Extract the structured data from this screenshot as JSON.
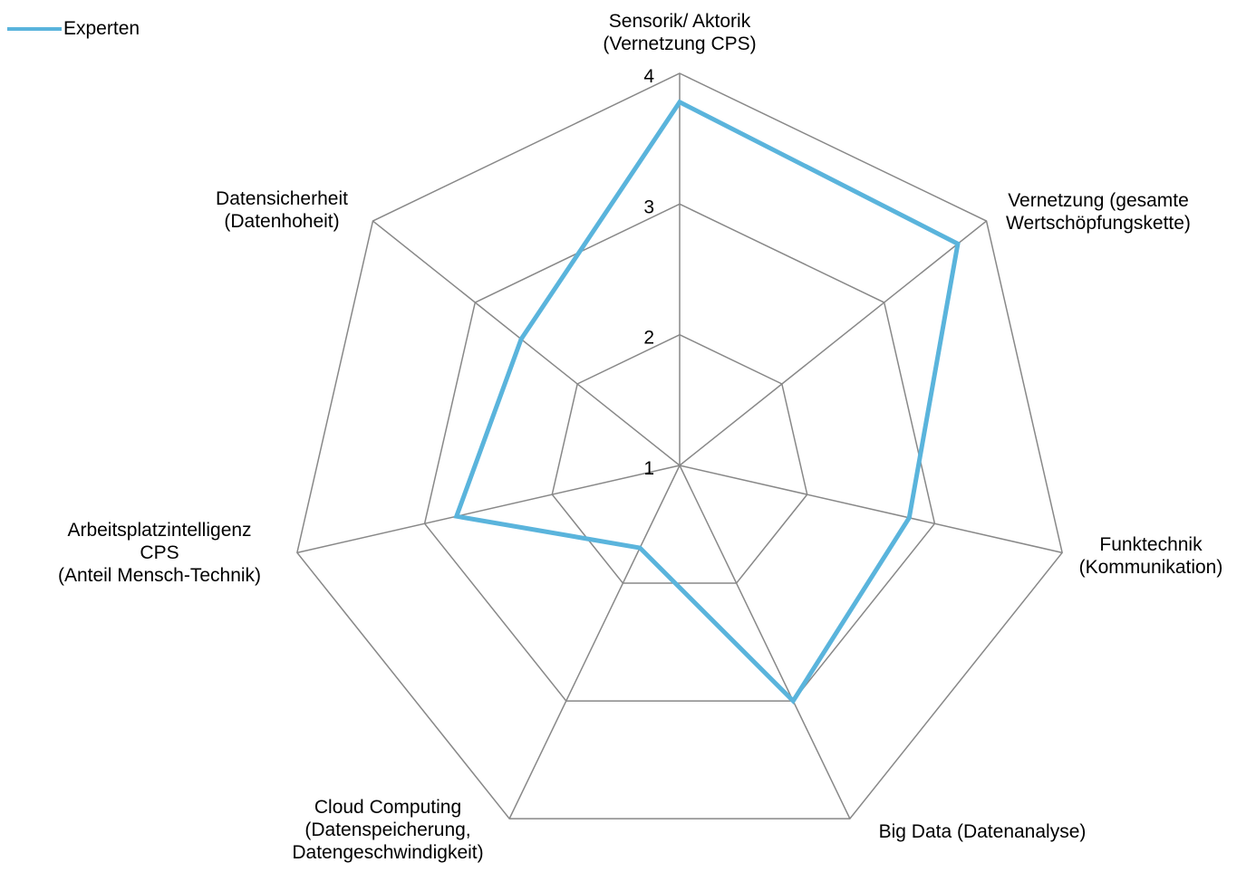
{
  "chart_data": {
    "type": "radar",
    "categories": [
      [
        "Sensorik/ Aktorik",
        "(Vernetzung CPS)"
      ],
      [
        "Vernetzung (gesamte",
        "Wertschöpfungskette)"
      ],
      [
        "Funktechnik",
        "(Kommunikation)"
      ],
      [
        "Big Data (Datenanalyse)"
      ],
      [
        "Cloud Computing",
        "(Datenspeicherung,",
        "Datengeschwindigkeit)"
      ],
      [
        "Arbeitsplatzintelligenz",
        "CPS",
        "(Anteil Mensch-Technik)"
      ],
      [
        "Datensicherheit",
        "(Datenhoheit)"
      ]
    ],
    "series": [
      {
        "name": "Experten",
        "values": [
          3.78,
          3.72,
          2.8,
          3.0,
          1.7,
          2.75,
          2.55
        ]
      }
    ],
    "rlim": [
      1,
      4
    ],
    "ticks": [
      1,
      2,
      3,
      4
    ],
    "legend_position": "top-left",
    "colors": {
      "series": "#5AB4DC",
      "grid": "#888888"
    }
  }
}
